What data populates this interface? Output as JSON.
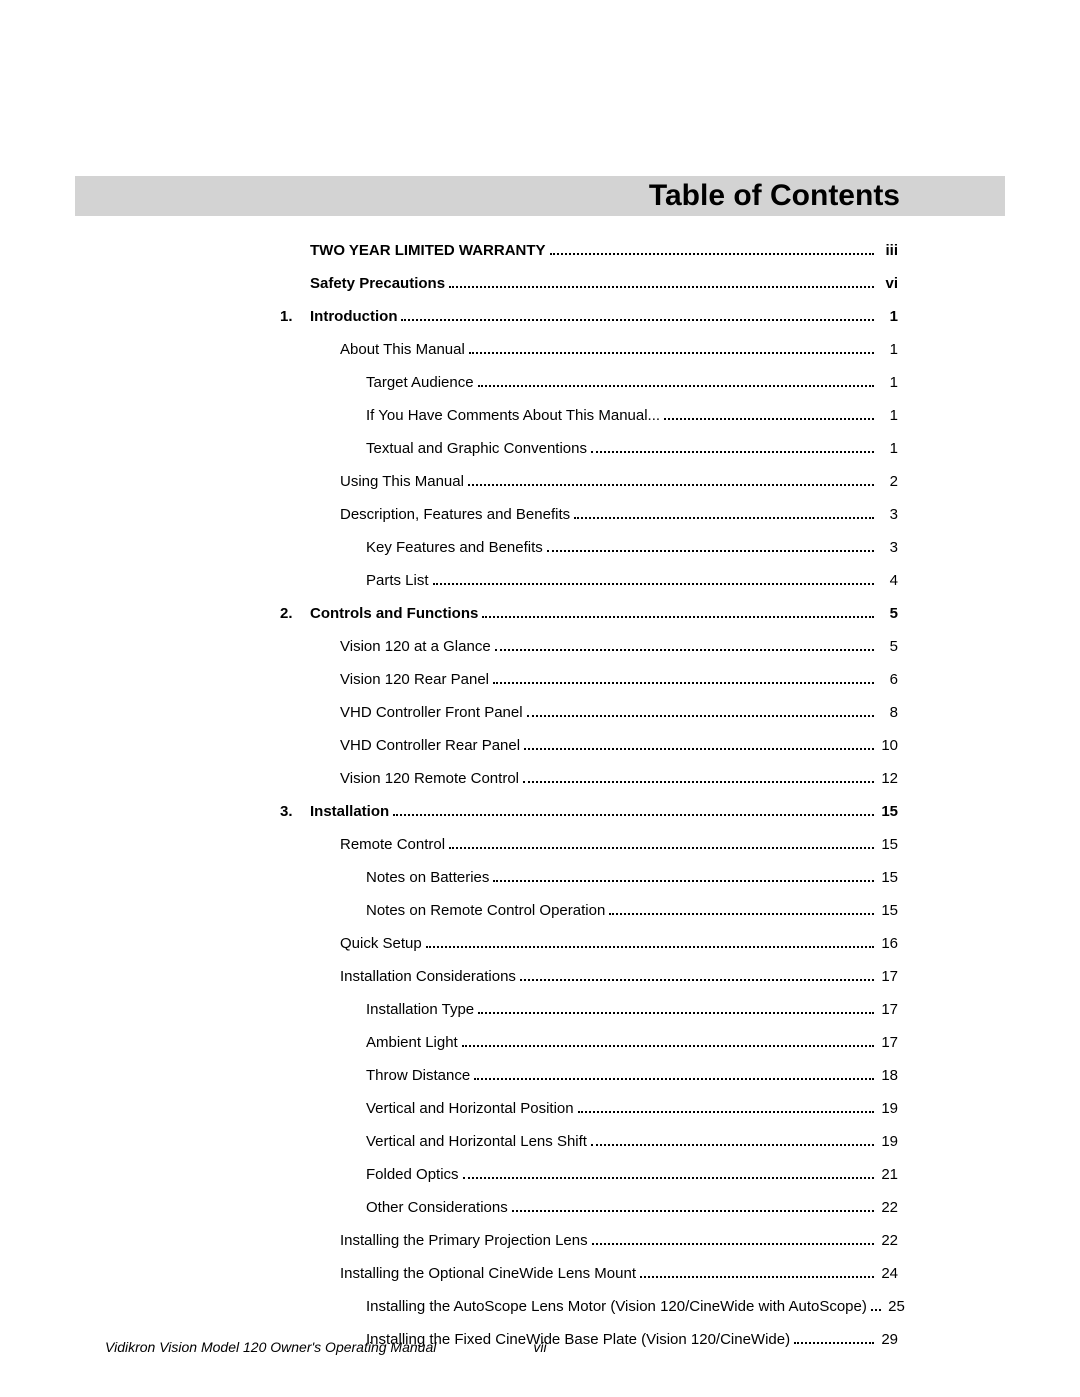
{
  "header": {
    "title": "Table of Contents",
    "bar_color": "#d3d3d3",
    "title_fontsize": 30,
    "title_color": "#000000"
  },
  "typography": {
    "body_fontsize": 15,
    "footer_fontsize": 14,
    "font_family": "Myriad Pro",
    "text_color": "#000000",
    "dot_leader_color": "#000000"
  },
  "entries": [
    {
      "num": "",
      "label": "TWO YEAR LIMITED WARRANTY",
      "page": "iii",
      "level": 0,
      "bold": true
    },
    {
      "num": "",
      "label": "Safety Precautions",
      "page": "vi",
      "level": 0,
      "bold": true
    },
    {
      "num": "1.",
      "label": "Introduction",
      "page": "1",
      "level": 0,
      "bold": true
    },
    {
      "num": "",
      "label": "About This Manual",
      "page": "1",
      "level": 1,
      "bold": false
    },
    {
      "num": "",
      "label": "Target Audience",
      "page": "1",
      "level": 2,
      "bold": false
    },
    {
      "num": "",
      "label": "If You Have Comments About This Manual...",
      "page": "1",
      "level": 2,
      "bold": false
    },
    {
      "num": "",
      "label": "Textual and Graphic Conventions",
      "page": "1",
      "level": 2,
      "bold": false
    },
    {
      "num": "",
      "label": "Using This Manual",
      "page": "2",
      "level": 1,
      "bold": false
    },
    {
      "num": "",
      "label": "Description, Features and Benefits",
      "page": "3",
      "level": 1,
      "bold": false
    },
    {
      "num": "",
      "label": "Key Features and Benefits",
      "page": "3",
      "level": 2,
      "bold": false
    },
    {
      "num": "",
      "label": "Parts List",
      "page": "4",
      "level": 2,
      "bold": false
    },
    {
      "num": "2.",
      "label": "Controls and Functions",
      "page": "5",
      "level": 0,
      "bold": true
    },
    {
      "num": "",
      "label": "Vision 120 at a Glance",
      "page": "5",
      "level": 1,
      "bold": false
    },
    {
      "num": "",
      "label": "Vision 120 Rear Panel",
      "page": "6",
      "level": 1,
      "bold": false
    },
    {
      "num": "",
      "label": "VHD Controller Front Panel",
      "page": "8",
      "level": 1,
      "bold": false
    },
    {
      "num": "",
      "label": "VHD Controller Rear Panel",
      "page": "10",
      "level": 1,
      "bold": false
    },
    {
      "num": "",
      "label": "Vision 120 Remote Control",
      "page": "12",
      "level": 1,
      "bold": false
    },
    {
      "num": "3.",
      "label": "Installation",
      "page": "15",
      "level": 0,
      "bold": true
    },
    {
      "num": "",
      "label": "Remote Control",
      "page": "15",
      "level": 1,
      "bold": false
    },
    {
      "num": "",
      "label": "Notes on Batteries",
      "page": "15",
      "level": 2,
      "bold": false
    },
    {
      "num": "",
      "label": "Notes on Remote Control Operation",
      "page": "15",
      "level": 2,
      "bold": false
    },
    {
      "num": "",
      "label": "Quick Setup",
      "page": "16",
      "level": 1,
      "bold": false
    },
    {
      "num": "",
      "label": "Installation Considerations",
      "page": "17",
      "level": 1,
      "bold": false
    },
    {
      "num": "",
      "label": "Installation Type",
      "page": "17",
      "level": 2,
      "bold": false
    },
    {
      "num": "",
      "label": "Ambient Light",
      "page": "17",
      "level": 2,
      "bold": false
    },
    {
      "num": "",
      "label": "Throw Distance",
      "page": "18",
      "level": 2,
      "bold": false
    },
    {
      "num": "",
      "label": "Vertical and Horizontal Position",
      "page": "19",
      "level": 2,
      "bold": false
    },
    {
      "num": "",
      "label": "Vertical and Horizontal Lens Shift",
      "page": "19",
      "level": 2,
      "bold": false
    },
    {
      "num": "",
      "label": "Folded Optics",
      "page": "21",
      "level": 2,
      "bold": false
    },
    {
      "num": "",
      "label": "Other Considerations",
      "page": "22",
      "level": 2,
      "bold": false
    },
    {
      "num": "",
      "label": "Installing the Primary Projection Lens",
      "page": "22",
      "level": 1,
      "bold": false
    },
    {
      "num": "",
      "label": "Installing the Optional CineWide Lens Mount",
      "page": "24",
      "level": 1,
      "bold": false
    },
    {
      "num": "",
      "label": "Installing the AutoScope Lens Motor (Vision 120/CineWide with AutoScope)",
      "page": "25",
      "level": 2,
      "bold": false
    },
    {
      "num": "",
      "label": "Installing the Fixed CineWide Base Plate (Vision 120/CineWide)",
      "page": "29",
      "level": 2,
      "bold": false
    }
  ],
  "footer": {
    "title": "Vidikron Vision Model 120 Owner's Operating Manual",
    "page_num": "vii"
  }
}
